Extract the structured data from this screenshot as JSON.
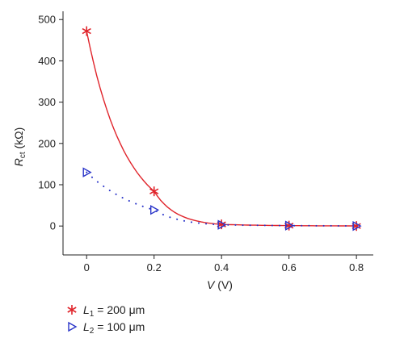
{
  "chart_data": {
    "type": "scatter",
    "xlabel_italic": "V",
    "xlabel_rest": " (V)",
    "ylabel_main": "R",
    "ylabel_sub": "ct",
    "ylabel_rest": " (kΩ)",
    "xlim": [
      -0.07,
      0.85
    ],
    "ylim": [
      -70,
      520
    ],
    "xticks": [
      0,
      0.2,
      0.4,
      0.6,
      0.8
    ],
    "xtick_labels": [
      "0",
      "0.2",
      "0.4",
      "0.6",
      "0.8"
    ],
    "yticks": [
      0,
      100,
      200,
      300,
      400,
      500
    ],
    "ytick_labels": [
      "0",
      "100",
      "200",
      "300",
      "400",
      "500"
    ],
    "grid": false,
    "legend_position": "bottom-left, below plot",
    "series": [
      {
        "legend_italic": "L",
        "legend_sub": "1",
        "legend_rest": " = 200 μm",
        "marker": "asterisk",
        "color": "#e0242b",
        "fit_style": "solid",
        "x": [
          0,
          0.2,
          0.4,
          0.6,
          0.8
        ],
        "y": [
          472,
          84,
          4,
          1,
          0
        ]
      },
      {
        "legend_italic": "L",
        "legend_sub": "2",
        "legend_rest": " = 100 μm",
        "marker": "triangle-right",
        "color": "#2a35c9",
        "fit_style": "dotted",
        "x": [
          0,
          0.2,
          0.4,
          0.6,
          0.8
        ],
        "y": [
          130,
          39,
          3,
          1,
          0
        ]
      }
    ]
  }
}
